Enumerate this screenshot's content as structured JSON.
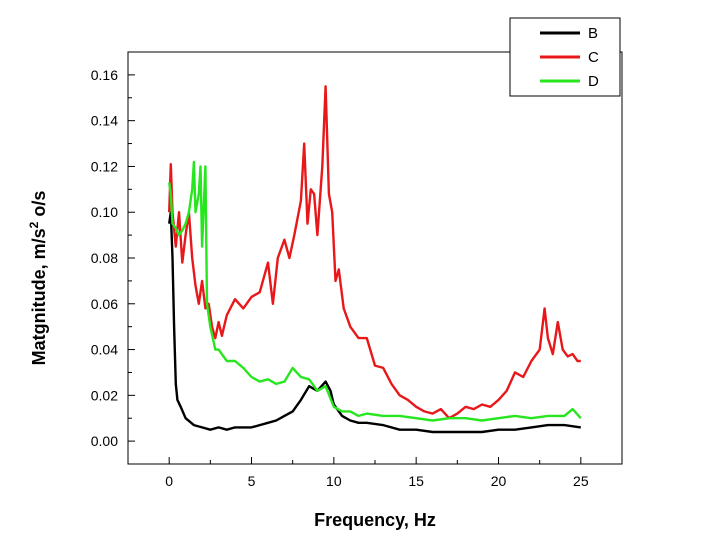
{
  "chart_data": {
    "type": "line",
    "title": "",
    "xlabel": "Frequency, Hz",
    "ylabel_parts": {
      "before": "Matgnitude, m/s",
      "superscript": "2",
      "after": " o/s"
    },
    "xlim": [
      -2.5,
      27.5
    ],
    "ylim": [
      -0.01,
      0.17
    ],
    "x_ticks": [
      0,
      5,
      10,
      15,
      20,
      25
    ],
    "x_tick_labels": [
      "0",
      "5",
      "10",
      "15",
      "20",
      "25"
    ],
    "y_ticks": [
      0.0,
      0.02,
      0.04,
      0.06,
      0.08,
      0.1,
      0.12,
      0.14,
      0.16
    ],
    "y_tick_labels": [
      "0.00",
      "0.02",
      "0.04",
      "0.06",
      "0.08",
      "0.10",
      "0.12",
      "0.14",
      "0.16"
    ],
    "grid": false,
    "legend_position": "top-right",
    "series": [
      {
        "name": "B",
        "color": "#000000",
        "points": [
          [
            0.0,
            0.095
          ],
          [
            0.1,
            0.1
          ],
          [
            0.2,
            0.08
          ],
          [
            0.3,
            0.05
          ],
          [
            0.4,
            0.025
          ],
          [
            0.5,
            0.018
          ],
          [
            0.7,
            0.015
          ],
          [
            1.0,
            0.01
          ],
          [
            1.5,
            0.007
          ],
          [
            2.0,
            0.006
          ],
          [
            2.5,
            0.005
          ],
          [
            3.0,
            0.006
          ],
          [
            3.5,
            0.005
          ],
          [
            4.0,
            0.006
          ],
          [
            4.5,
            0.006
          ],
          [
            5.0,
            0.006
          ],
          [
            5.5,
            0.007
          ],
          [
            6.0,
            0.008
          ],
          [
            6.5,
            0.009
          ],
          [
            7.0,
            0.011
          ],
          [
            7.5,
            0.013
          ],
          [
            8.0,
            0.018
          ],
          [
            8.5,
            0.024
          ],
          [
            9.0,
            0.022
          ],
          [
            9.5,
            0.026
          ],
          [
            9.8,
            0.022
          ],
          [
            10.0,
            0.016
          ],
          [
            10.5,
            0.011
          ],
          [
            11.0,
            0.009
          ],
          [
            11.5,
            0.008
          ],
          [
            12.0,
            0.008
          ],
          [
            13.0,
            0.007
          ],
          [
            14.0,
            0.005
          ],
          [
            15.0,
            0.005
          ],
          [
            16.0,
            0.004
          ],
          [
            17.0,
            0.004
          ],
          [
            18.0,
            0.004
          ],
          [
            19.0,
            0.004
          ],
          [
            20.0,
            0.005
          ],
          [
            21.0,
            0.005
          ],
          [
            22.0,
            0.006
          ],
          [
            23.0,
            0.007
          ],
          [
            24.0,
            0.007
          ],
          [
            25.0,
            0.006
          ]
        ]
      },
      {
        "name": "C",
        "color": "#e8181a",
        "points": [
          [
            0.0,
            0.1
          ],
          [
            0.1,
            0.121
          ],
          [
            0.2,
            0.1
          ],
          [
            0.4,
            0.085
          ],
          [
            0.6,
            0.1
          ],
          [
            0.8,
            0.078
          ],
          [
            1.0,
            0.09
          ],
          [
            1.2,
            0.1
          ],
          [
            1.4,
            0.08
          ],
          [
            1.6,
            0.068
          ],
          [
            1.8,
            0.06
          ],
          [
            2.0,
            0.07
          ],
          [
            2.2,
            0.058
          ],
          [
            2.4,
            0.06
          ],
          [
            2.6,
            0.05
          ],
          [
            2.8,
            0.045
          ],
          [
            3.0,
            0.052
          ],
          [
            3.2,
            0.046
          ],
          [
            3.5,
            0.055
          ],
          [
            4.0,
            0.062
          ],
          [
            4.5,
            0.058
          ],
          [
            5.0,
            0.063
          ],
          [
            5.5,
            0.065
          ],
          [
            6.0,
            0.078
          ],
          [
            6.3,
            0.06
          ],
          [
            6.6,
            0.08
          ],
          [
            7.0,
            0.088
          ],
          [
            7.3,
            0.08
          ],
          [
            7.6,
            0.09
          ],
          [
            8.0,
            0.105
          ],
          [
            8.2,
            0.13
          ],
          [
            8.4,
            0.095
          ],
          [
            8.6,
            0.11
          ],
          [
            8.8,
            0.108
          ],
          [
            9.0,
            0.09
          ],
          [
            9.3,
            0.12
          ],
          [
            9.5,
            0.155
          ],
          [
            9.7,
            0.108
          ],
          [
            9.9,
            0.1
          ],
          [
            10.1,
            0.07
          ],
          [
            10.3,
            0.075
          ],
          [
            10.6,
            0.058
          ],
          [
            11.0,
            0.05
          ],
          [
            11.5,
            0.045
          ],
          [
            12.0,
            0.045
          ],
          [
            12.5,
            0.033
          ],
          [
            13.0,
            0.032
          ],
          [
            13.5,
            0.025
          ],
          [
            14.0,
            0.02
          ],
          [
            14.5,
            0.018
          ],
          [
            15.0,
            0.015
          ],
          [
            15.5,
            0.013
          ],
          [
            16.0,
            0.012
          ],
          [
            16.5,
            0.014
          ],
          [
            17.0,
            0.01
          ],
          [
            17.5,
            0.012
          ],
          [
            18.0,
            0.015
          ],
          [
            18.5,
            0.014
          ],
          [
            19.0,
            0.016
          ],
          [
            19.5,
            0.015
          ],
          [
            20.0,
            0.018
          ],
          [
            20.5,
            0.022
          ],
          [
            21.0,
            0.03
          ],
          [
            21.5,
            0.028
          ],
          [
            22.0,
            0.035
          ],
          [
            22.5,
            0.04
          ],
          [
            22.8,
            0.058
          ],
          [
            23.0,
            0.045
          ],
          [
            23.3,
            0.038
          ],
          [
            23.6,
            0.052
          ],
          [
            23.9,
            0.04
          ],
          [
            24.2,
            0.037
          ],
          [
            24.5,
            0.038
          ],
          [
            24.8,
            0.035
          ],
          [
            25.0,
            0.035
          ]
        ]
      },
      {
        "name": "D",
        "color": "#27e61f",
        "points": [
          [
            0.0,
            0.113
          ],
          [
            0.1,
            0.108
          ],
          [
            0.2,
            0.095
          ],
          [
            0.4,
            0.093
          ],
          [
            0.6,
            0.09
          ],
          [
            0.8,
            0.092
          ],
          [
            1.0,
            0.095
          ],
          [
            1.2,
            0.1
          ],
          [
            1.4,
            0.11
          ],
          [
            1.5,
            0.122
          ],
          [
            1.6,
            0.1
          ],
          [
            1.8,
            0.108
          ],
          [
            1.9,
            0.12
          ],
          [
            2.0,
            0.085
          ],
          [
            2.2,
            0.12
          ],
          [
            2.3,
            0.06
          ],
          [
            2.5,
            0.05
          ],
          [
            2.8,
            0.04
          ],
          [
            3.0,
            0.04
          ],
          [
            3.5,
            0.035
          ],
          [
            4.0,
            0.035
          ],
          [
            4.5,
            0.032
          ],
          [
            5.0,
            0.028
          ],
          [
            5.5,
            0.026
          ],
          [
            6.0,
            0.027
          ],
          [
            6.5,
            0.025
          ],
          [
            7.0,
            0.026
          ],
          [
            7.5,
            0.032
          ],
          [
            8.0,
            0.028
          ],
          [
            8.5,
            0.027
          ],
          [
            9.0,
            0.022
          ],
          [
            9.5,
            0.024
          ],
          [
            10.0,
            0.015
          ],
          [
            10.5,
            0.013
          ],
          [
            11.0,
            0.013
          ],
          [
            11.5,
            0.011
          ],
          [
            12.0,
            0.012
          ],
          [
            13.0,
            0.011
          ],
          [
            14.0,
            0.011
          ],
          [
            15.0,
            0.01
          ],
          [
            16.0,
            0.009
          ],
          [
            17.0,
            0.01
          ],
          [
            18.0,
            0.01
          ],
          [
            19.0,
            0.009
          ],
          [
            20.0,
            0.01
          ],
          [
            21.0,
            0.011
          ],
          [
            22.0,
            0.01
          ],
          [
            23.0,
            0.011
          ],
          [
            24.0,
            0.011
          ],
          [
            24.5,
            0.014
          ],
          [
            25.0,
            0.01
          ]
        ]
      }
    ]
  }
}
